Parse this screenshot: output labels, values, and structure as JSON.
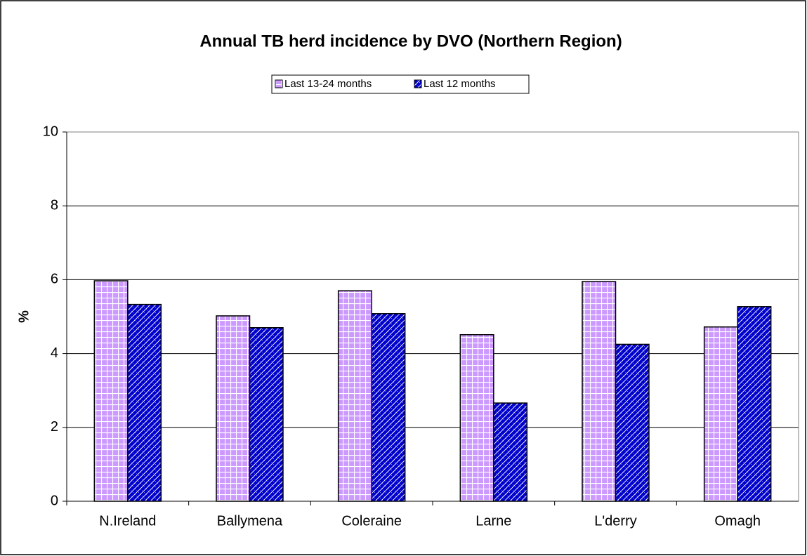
{
  "chart_data": {
    "type": "bar",
    "title": "Annual TB herd incidence by DVO (Northern Region)",
    "y_label": "%",
    "categories": [
      "N.Ireland",
      "Ballymena",
      "Coleraine",
      "Larne",
      "L'derry",
      "Omagh"
    ],
    "series": [
      {
        "name": "Last 13-24 months",
        "color": "#cc99ff",
        "pattern": "grid",
        "values": [
          5.97,
          5.02,
          5.7,
          4.51,
          5.95,
          4.72
        ]
      },
      {
        "name": "Last 12 months",
        "color": "#0000cc",
        "pattern": "diagonal-cross",
        "values": [
          5.33,
          4.7,
          5.08,
          2.66,
          4.25,
          5.27
        ]
      }
    ],
    "ylim": [
      0,
      10
    ],
    "yticks": [
      0,
      2,
      4,
      6,
      8,
      10
    ],
    "grid": true,
    "legend": "top"
  }
}
